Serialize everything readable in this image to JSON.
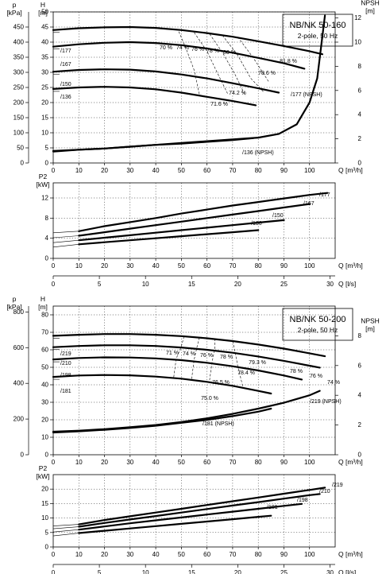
{
  "sections": [
    {
      "title_line1": "NB/NK 50-160",
      "title_line2": "2-pole, 50 Hz",
      "head_chart": {
        "y_left_label": "p",
        "y_left_unit": "[kPa]",
        "y_head_label": "H",
        "y_head_unit": "[m]",
        "y_npsh_label": "NPSH",
        "y_npsh_unit": "[m]",
        "x_label": "Q [m³/h]",
        "kpa_ticks": [
          "0",
          "50",
          "100",
          "150",
          "200",
          "250",
          "300",
          "350",
          "400",
          "450"
        ],
        "head_ticks": [
          "0",
          "5",
          "10",
          "15",
          "20",
          "25",
          "30",
          "35",
          "40",
          "45",
          "50"
        ],
        "npsh_ticks": [
          "0",
          "2",
          "4",
          "6",
          "8",
          "10",
          "12"
        ],
        "x_ticks": [
          "0",
          "10",
          "20",
          "30",
          "40",
          "50",
          "60",
          "70",
          "80",
          "90",
          "100"
        ],
        "efficiency_labels": [
          "70 %",
          "74 %",
          "76 %",
          "78 %",
          "80 %",
          "81.8 %",
          "78.6 %",
          "74.2 %",
          "71.6 %"
        ],
        "curve_labels": [
          "/177",
          "/167",
          "/150",
          "/136",
          "/177 (NPSH)",
          "/136 (NPSH)"
        ]
      },
      "power_chart": {
        "y_label": "P2",
        "y_unit": "[kW]",
        "y_ticks": [
          "0",
          "4",
          "8",
          "12"
        ],
        "x_label": "Q [m³/h]",
        "x2_label": "Q [l/s]",
        "x_ticks": [
          "0",
          "10",
          "20",
          "30",
          "40",
          "50",
          "60",
          "70",
          "80",
          "90",
          "100"
        ],
        "x2_ticks": [
          "0",
          "5",
          "10",
          "15",
          "20",
          "25",
          "30"
        ],
        "curve_labels": [
          "/177",
          "/167",
          "/150",
          "/136"
        ]
      }
    },
    {
      "title_line1": "NB/NK 50-200",
      "title_line2": "2-pole, 50 Hz",
      "head_chart": {
        "y_left_label": "p",
        "y_left_unit": "[kPa]",
        "y_head_label": "H",
        "y_head_unit": "[m]",
        "y_npsh_label": "NPSH",
        "y_npsh_unit": "[m]",
        "x_label": "Q [m³/h]",
        "kpa_ticks": [
          "0",
          "200",
          "400",
          "600",
          "800"
        ],
        "head_ticks": [
          "0",
          "10",
          "20",
          "30",
          "40",
          "50",
          "60",
          "70",
          "80"
        ],
        "npsh_ticks": [
          "0",
          "2",
          "4",
          "6",
          "8"
        ],
        "x_ticks": [
          "0",
          "10",
          "20",
          "30",
          "40",
          "50",
          "60",
          "70",
          "80",
          "90",
          "100"
        ],
        "efficiency_labels": [
          "71 %",
          "74 %",
          "76 %",
          "78 %",
          "79.3 %",
          "78.4 %",
          "78 %",
          "76 %",
          "74 %",
          "76.5 %",
          "75.0 %"
        ],
        "curve_labels": [
          "/219",
          "/210",
          "/198",
          "/181",
          "/219 (NPSH)",
          "/181 (NPSH)"
        ]
      },
      "power_chart": {
        "y_label": "P2",
        "y_unit": "[kW]",
        "y_ticks": [
          "0",
          "5",
          "10",
          "15",
          "20"
        ],
        "x_label": "Q [m³/h]",
        "x2_label": "Q [l/s]",
        "x_ticks": [
          "0",
          "10",
          "20",
          "30",
          "40",
          "50",
          "60",
          "70",
          "80",
          "90",
          "100"
        ],
        "x2_ticks": [
          "0",
          "5",
          "10",
          "15",
          "20",
          "25",
          "30"
        ],
        "curve_labels": [
          "/219",
          "/210",
          "/198",
          "/181"
        ]
      }
    }
  ],
  "chart_data": [
    {
      "type": "line",
      "title": "NB/NK 50-160, 2-pole, 50 Hz",
      "xlabel": "Q [m³/h]",
      "ylabel": "H [m]",
      "y2label": "NPSH [m]",
      "y3label": "p [kPa]",
      "xlim": [
        0,
        110
      ],
      "ylim": [
        0,
        50
      ],
      "y2lim": [
        0,
        12.5
      ],
      "series": [
        {
          "name": "/177",
          "axis": "H",
          "x": [
            0,
            10,
            20,
            30,
            40,
            50,
            60,
            70,
            80,
            90,
            100,
            105
          ],
          "y": [
            44,
            44.6,
            44.9,
            45,
            44.7,
            44,
            43,
            41.8,
            40.3,
            38.7,
            37,
            36
          ]
        },
        {
          "name": "/167",
          "axis": "H",
          "x": [
            0,
            10,
            20,
            30,
            40,
            50,
            60,
            70,
            80,
            90,
            98
          ],
          "y": [
            38.5,
            39.3,
            39.8,
            40,
            39.7,
            39,
            37.9,
            36.5,
            34.8,
            33,
            31.2
          ]
        },
        {
          "name": "/150",
          "axis": "H",
          "x": [
            0,
            10,
            20,
            30,
            40,
            50,
            60,
            70,
            80,
            88
          ],
          "y": [
            30.2,
            30.8,
            31,
            30.9,
            30.3,
            29.3,
            28,
            26.4,
            24.7,
            23.3
          ]
        },
        {
          "name": "/136",
          "axis": "H",
          "x": [
            0,
            10,
            20,
            30,
            40,
            50,
            60,
            70,
            79
          ],
          "y": [
            24.5,
            25,
            25.2,
            25,
            24.4,
            23.3,
            21.9,
            20.5,
            19.1
          ]
        },
        {
          "name": "/177 (NPSH)",
          "axis": "NPSH",
          "x": [
            0,
            10,
            20,
            30,
            40,
            50,
            60,
            70,
            80,
            88,
            95,
            100,
            103,
            106
          ],
          "y": [
            1.0,
            1.1,
            1.2,
            1.35,
            1.5,
            1.65,
            1.8,
            1.95,
            2.1,
            2.4,
            3.2,
            5.0,
            7.0,
            12.2
          ]
        },
        {
          "name": "/136 (NPSH)",
          "axis": "NPSH",
          "x": [
            0,
            10,
            20,
            30,
            40,
            50,
            60,
            70,
            78
          ],
          "y": [
            0.95,
            1.1,
            1.2,
            1.35,
            1.5,
            1.6,
            1.75,
            1.9,
            2.05
          ]
        }
      ],
      "efficiency_isolines": [
        {
          "label": "70 %",
          "points": [
            [
              49,
              43.5
            ],
            [
              52,
              37.5
            ],
            [
              55,
              30.7
            ],
            [
              57,
              22.8
            ]
          ]
        },
        {
          "label": "74 %",
          "points": [
            [
              55,
              43.2
            ],
            [
              60,
              37
            ],
            [
              64,
              29.9
            ],
            [
              68,
              23
            ]
          ]
        },
        {
          "label": "76 %",
          "points": [
            [
              61,
              42.7
            ],
            [
              66,
              36.6
            ],
            [
              71,
              29.2
            ],
            [
              75,
              22.2
            ]
          ]
        },
        {
          "label": "78 %",
          "points": [
            [
              66,
              42.3
            ],
            [
              72,
              35.6
            ],
            [
              77,
              28.1
            ],
            [
              82,
              23.6
            ]
          ]
        },
        {
          "label": "80 %",
          "points": [
            [
              72,
              41.7
            ],
            [
              78,
              34.9
            ],
            [
              84,
              27
            ]
          ]
        }
      ]
    },
    {
      "type": "line",
      "title": "NB/NK 50-160, 2-pole, 50 Hz",
      "xlabel": "Q [m³/h]",
      "x2label": "Q [l/s]",
      "ylabel": "P2 [kW]",
      "xlim": [
        0,
        110
      ],
      "ylim": [
        0,
        15
      ],
      "series": [
        {
          "name": "/177",
          "x": [
            10,
            20,
            30,
            40,
            50,
            60,
            70,
            80,
            90,
            100,
            107
          ],
          "y": [
            5.4,
            6.4,
            7.2,
            8.0,
            8.9,
            9.7,
            10.5,
            11.2,
            11.9,
            12.6,
            13.0
          ]
        },
        {
          "name": "/167",
          "x": [
            10,
            20,
            30,
            40,
            50,
            60,
            70,
            80,
            90,
            100
          ],
          "y": [
            4.5,
            5.2,
            5.9,
            6.6,
            7.3,
            8.0,
            8.7,
            9.4,
            10.1,
            10.8
          ]
        },
        {
          "name": "/150",
          "x": [
            10,
            20,
            30,
            40,
            50,
            60,
            70,
            80,
            90
          ],
          "y": [
            3.6,
            4.1,
            4.6,
            5.1,
            5.6,
            6.1,
            6.6,
            7.1,
            7.6
          ]
        },
        {
          "name": "/136",
          "x": [
            10,
            20,
            30,
            40,
            50,
            60,
            70,
            80
          ],
          "y": [
            2.8,
            3.2,
            3.6,
            4.0,
            4.4,
            4.8,
            5.2,
            5.6
          ]
        }
      ]
    },
    {
      "type": "line",
      "title": "NB/NK 50-200, 2-pole, 50 Hz",
      "xlabel": "Q [m³/h]",
      "ylabel": "H [m]",
      "y2label": "NPSH [m]",
      "y3label": "p [kPa]",
      "xlim": [
        0,
        110
      ],
      "ylim": [
        0,
        85
      ],
      "y2lim": [
        0,
        10
      ],
      "series": [
        {
          "name": "/219",
          "axis": "H",
          "x": [
            0,
            10,
            20,
            30,
            40,
            50,
            60,
            70,
            80,
            90,
            100,
            106
          ],
          "y": [
            68,
            68.6,
            69,
            69,
            68.6,
            67.8,
            66.6,
            65,
            63,
            60.7,
            58,
            56.3
          ]
        },
        {
          "name": "/210",
          "axis": "H",
          "x": [
            0,
            10,
            20,
            30,
            40,
            50,
            60,
            70,
            80,
            90,
            100,
            104
          ],
          "y": [
            61.5,
            62.2,
            62.6,
            62.6,
            62.2,
            61.3,
            60,
            58.3,
            56.2,
            53.7,
            50.9,
            49.8
          ]
        },
        {
          "name": "/198",
          "axis": "H",
          "x": [
            0,
            10,
            20,
            30,
            40,
            50,
            60,
            70,
            80,
            90,
            97
          ],
          "y": [
            54.5,
            55.3,
            55.7,
            55.6,
            55.1,
            54.1,
            52.6,
            50.6,
            48.2,
            45.3,
            43
          ]
        },
        {
          "name": "/181",
          "axis": "H",
          "x": [
            0,
            10,
            20,
            30,
            40,
            50,
            60,
            70,
            80,
            85
          ],
          "y": [
            44.5,
            45.3,
            45.6,
            45.4,
            44.7,
            43.5,
            41.7,
            39.4,
            36.5,
            35
          ]
        },
        {
          "name": "/219 (NPSH)",
          "axis": "NPSH",
          "x": [
            0,
            10,
            20,
            30,
            40,
            50,
            60,
            70,
            80,
            90,
            100,
            104
          ],
          "y": [
            1.55,
            1.62,
            1.72,
            1.85,
            2.0,
            2.2,
            2.45,
            2.75,
            3.1,
            3.5,
            4.0,
            4.3
          ]
        },
        {
          "name": "/181 (NPSH)",
          "axis": "NPSH",
          "x": [
            0,
            10,
            20,
            30,
            40,
            50,
            60,
            70,
            80,
            85
          ],
          "y": [
            1.5,
            1.58,
            1.68,
            1.8,
            1.95,
            2.15,
            2.35,
            2.6,
            2.9,
            3.1
          ]
        }
      ],
      "efficiency_isolines": [
        {
          "label": "71 %",
          "points": [
            [
              51,
              67.6
            ],
            [
              50,
              62
            ],
            [
              48,
              55
            ],
            [
              47,
              44.2
            ]
          ]
        },
        {
          "label": "74 %",
          "points": [
            [
              57,
              67
            ],
            [
              56,
              61
            ],
            [
              55,
              54.5
            ],
            [
              54,
              43.4
            ]
          ]
        },
        {
          "label": "76 %",
          "points": [
            [
              63,
              66.4
            ],
            [
              63,
              60.2
            ],
            [
              62,
              53.2
            ],
            [
              61,
              42.7
            ]
          ]
        },
        {
          "label": "78 %",
          "points": [
            [
              70,
              65
            ],
            [
              71,
              58.3
            ],
            [
              72,
              50.6
            ],
            [
              74,
              38.8
            ]
          ]
        }
      ]
    },
    {
      "type": "line",
      "title": "NB/NK 50-200, 2-pole, 50 Hz",
      "xlabel": "Q [m³/h]",
      "x2label": "Q [l/s]",
      "ylabel": "P2 [kW]",
      "xlim": [
        0,
        110
      ],
      "ylim": [
        0,
        25
      ],
      "series": [
        {
          "name": "/219",
          "x": [
            10,
            20,
            30,
            40,
            50,
            60,
            70,
            80,
            90,
            100,
            106
          ],
          "y": [
            7.8,
            9.3,
            10.6,
            11.9,
            13.2,
            14.5,
            15.8,
            17.1,
            18.4,
            19.7,
            20.5
          ]
        },
        {
          "name": "/210",
          "x": [
            10,
            20,
            30,
            40,
            50,
            60,
            70,
            80,
            90,
            100,
            104
          ],
          "y": [
            7.0,
            8.3,
            9.5,
            10.7,
            11.9,
            13.1,
            14.3,
            15.5,
            16.7,
            17.9,
            18.3
          ]
        },
        {
          "name": "/198",
          "x": [
            10,
            20,
            30,
            40,
            50,
            60,
            70,
            80,
            90,
            97
          ],
          "y": [
            6.0,
            7.1,
            8.2,
            9.2,
            10.2,
            11.2,
            12.2,
            13.2,
            14.2,
            14.9
          ]
        },
        {
          "name": "/181",
          "x": [
            10,
            20,
            30,
            40,
            50,
            60,
            70,
            80,
            85
          ],
          "y": [
            4.8,
            5.6,
            6.4,
            7.2,
            8.0,
            8.8,
            9.6,
            10.4,
            10.8
          ]
        }
      ]
    }
  ]
}
